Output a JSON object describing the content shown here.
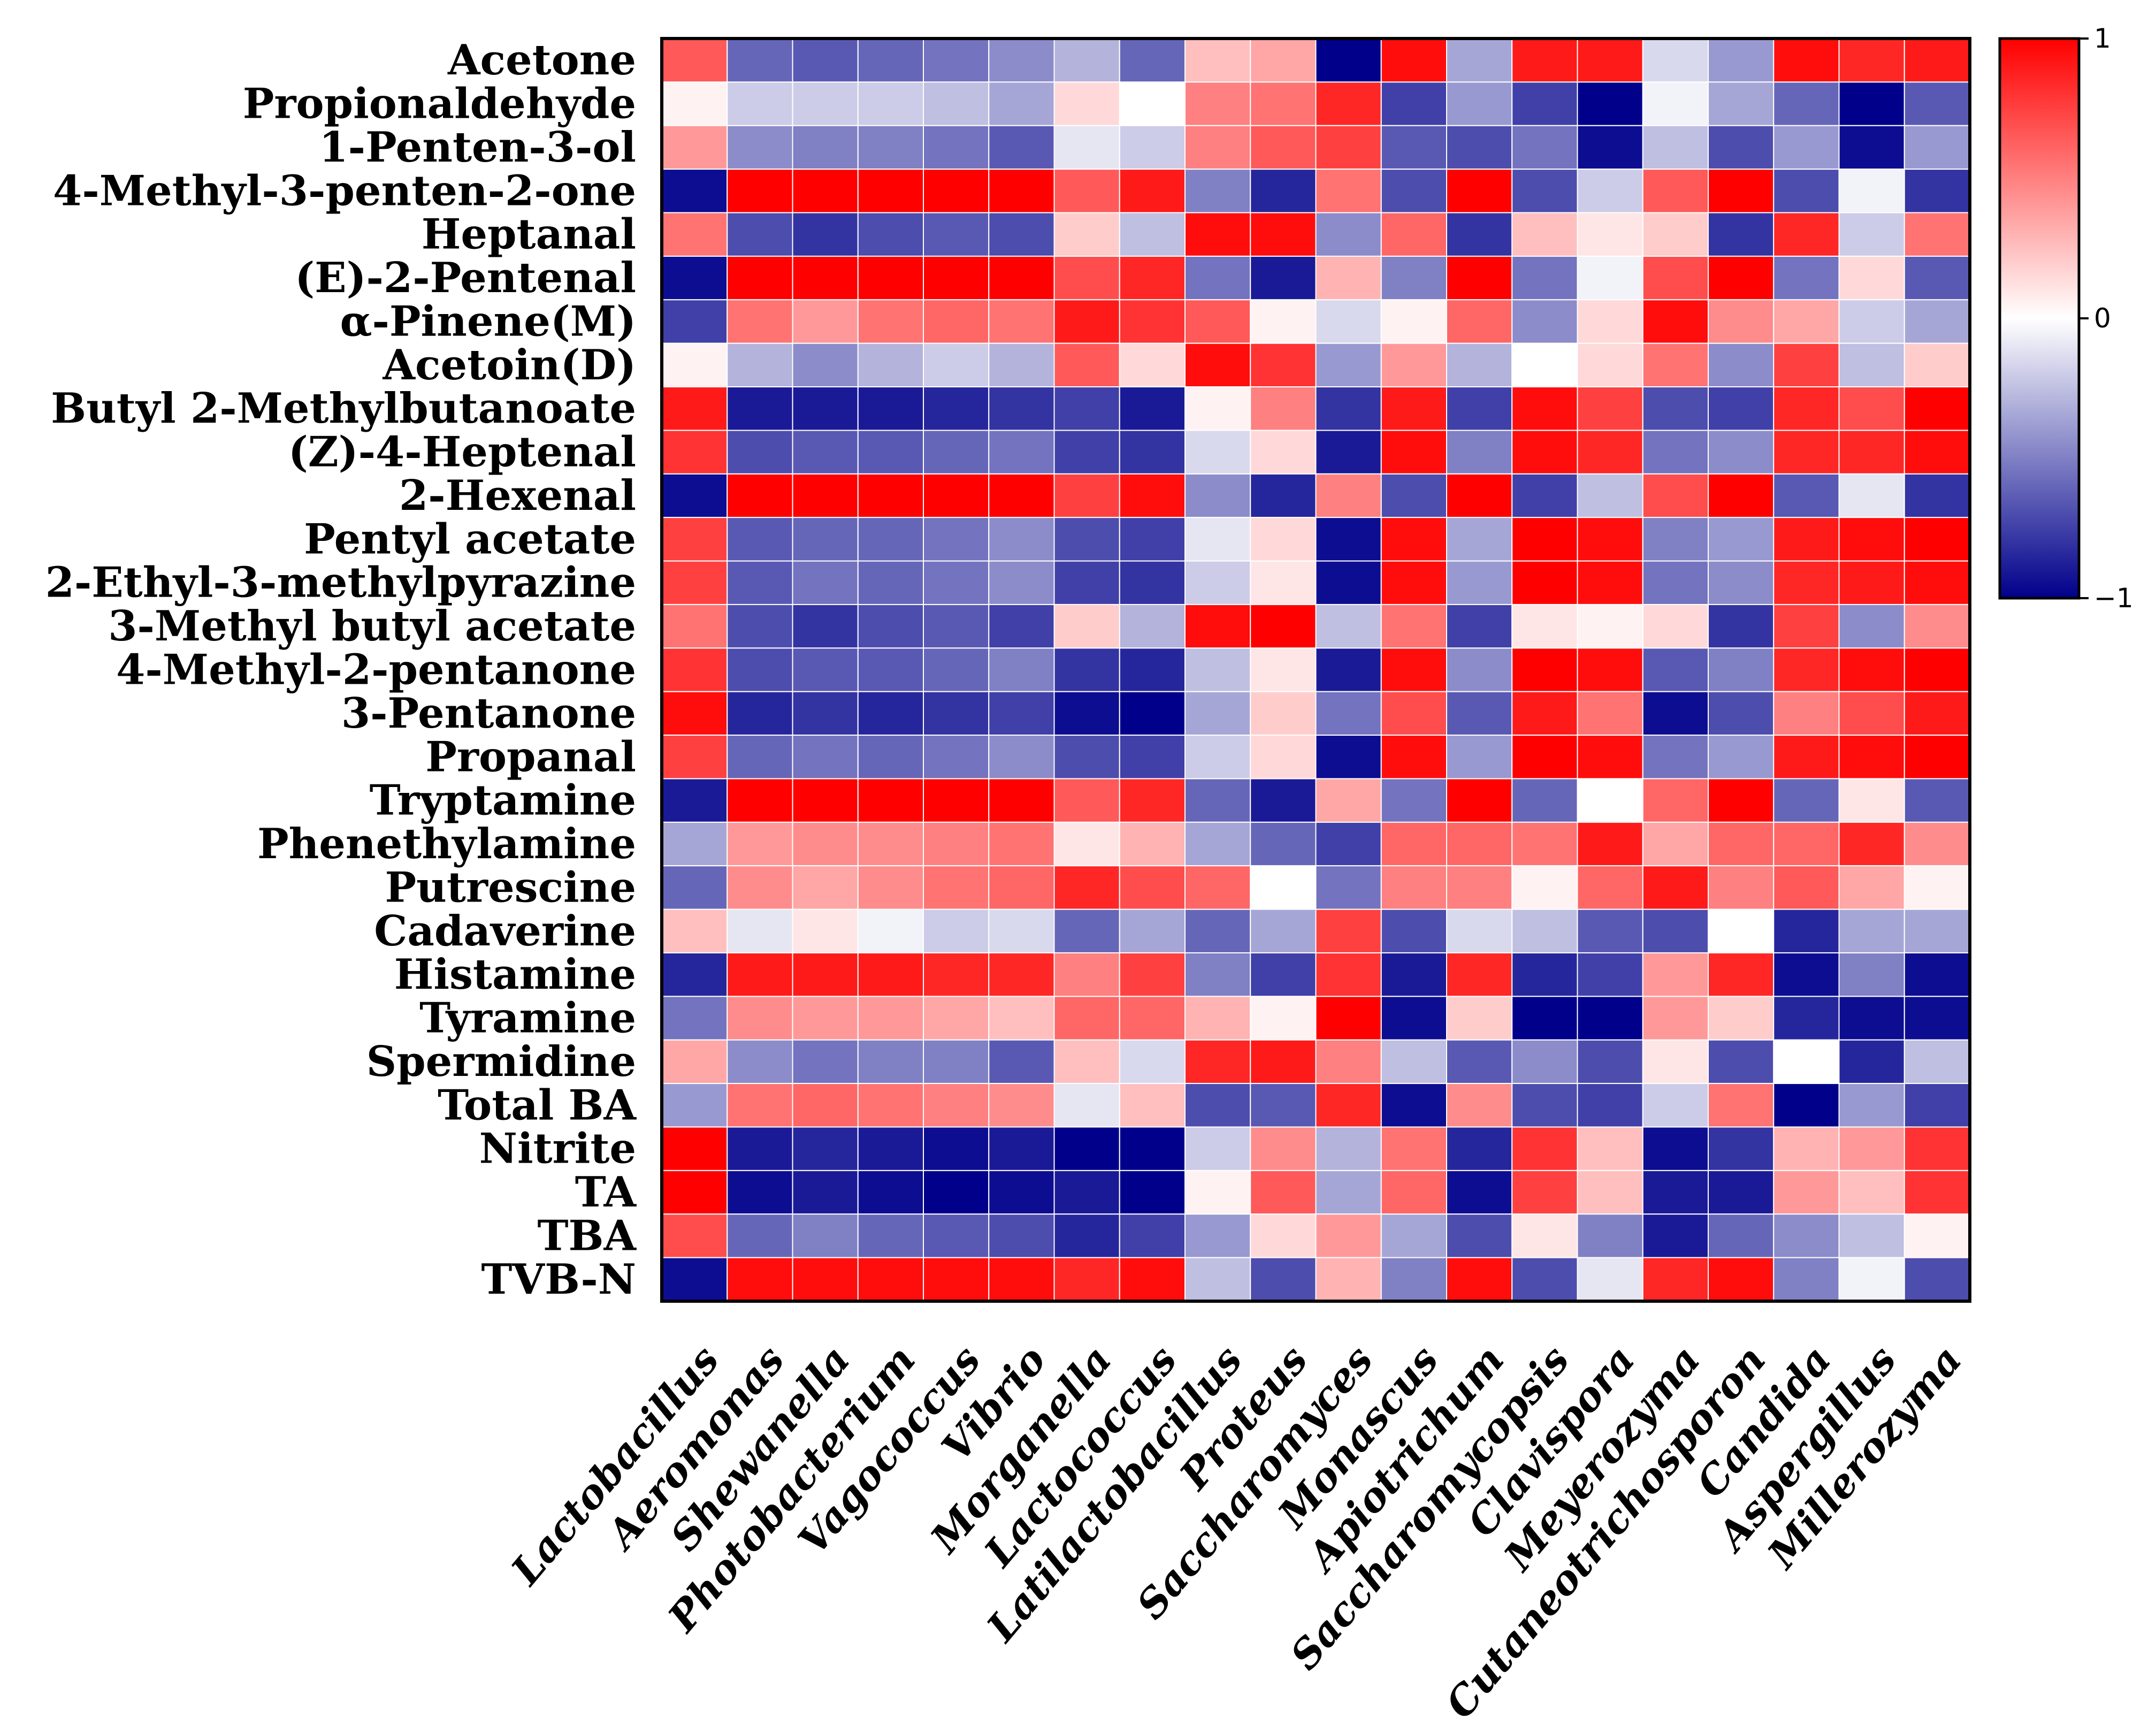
{
  "chart_data": {
    "type": "heatmap",
    "title": "",
    "xlabel": "",
    "ylabel": "",
    "color_scale": {
      "min": -1,
      "max": 1,
      "min_color": "#00008B",
      "mid_color": "#FFFFFF",
      "max_color": "#FF0000",
      "ticks": [
        {
          "value": 1,
          "label": "1"
        },
        {
          "value": 0,
          "label": "0"
        },
        {
          "value": -1,
          "label": "−1"
        }
      ]
    },
    "rows": [
      "Acetone",
      "Propionaldehyde",
      "1-Penten-3-ol",
      "4-Methyl-3-penten-2-one",
      "Heptanal",
      "(E)-2-Pentenal",
      "α-Pinene(M)",
      "Acetoin(D)",
      "Butyl 2-Methylbutanoate",
      "(Z)-4-Heptenal",
      "2-Hexenal",
      "Pentyl acetate",
      "2-Ethyl-3-methylpyrazine",
      "3-Methyl butyl acetate",
      "4-Methyl-2-pentanone",
      "3-Pentanone",
      "Propanal",
      "Tryptamine",
      "Phenethylamine",
      "Putrescine",
      "Cadaverine",
      "Histamine",
      "Tyramine",
      "Spermidine",
      "Total BA",
      "Nitrite",
      "TA",
      "TBA",
      "TVB-N"
    ],
    "columns": [
      "Lactobacillus",
      "Aeromonas",
      "Shewanella",
      "Photobacterium",
      "Vagococcus",
      "Vibrio",
      "Morganella",
      "Lactococcus",
      "Latilactobacillus",
      "Proteus",
      "Saccharomyces",
      "Monascus",
      "Apiotrichum",
      "Saccharomycopsis",
      "Clavispora",
      "Meyerozyma",
      "Cutaneotrichosporon",
      "Candida",
      "Aspergillus",
      "Millerozyma"
    ],
    "values": [
      [
        0.65,
        -0.6,
        -0.65,
        -0.6,
        -0.55,
        -0.45,
        -0.3,
        -0.6,
        0.25,
        0.35,
        -1.0,
        0.95,
        -0.35,
        0.9,
        0.9,
        -0.15,
        -0.4,
        0.95,
        0.85,
        0.9
      ],
      [
        0.05,
        -0.2,
        -0.2,
        -0.2,
        -0.25,
        -0.35,
        0.15,
        0.0,
        0.5,
        0.55,
        0.85,
        -0.75,
        -0.4,
        -0.75,
        -1.0,
        -0.05,
        -0.35,
        -0.6,
        -1.0,
        -0.65
      ],
      [
        0.4,
        -0.45,
        -0.5,
        -0.5,
        -0.55,
        -0.65,
        -0.1,
        -0.2,
        0.5,
        0.65,
        0.75,
        -0.65,
        -0.7,
        -0.55,
        -0.95,
        -0.25,
        -0.7,
        -0.4,
        -0.95,
        -0.4
      ],
      [
        -0.95,
        1.0,
        1.0,
        1.0,
        1.0,
        1.0,
        0.65,
        0.9,
        -0.5,
        -0.85,
        0.55,
        -0.7,
        1.0,
        -0.7,
        -0.2,
        0.65,
        1.0,
        -0.7,
        -0.05,
        -0.8
      ],
      [
        0.55,
        -0.7,
        -0.8,
        -0.7,
        -0.65,
        -0.7,
        0.2,
        -0.25,
        0.95,
        0.95,
        -0.45,
        0.6,
        -0.8,
        0.25,
        0.1,
        0.2,
        -0.8,
        0.85,
        -0.2,
        0.55
      ],
      [
        -0.95,
        1.0,
        1.0,
        1.0,
        1.0,
        1.0,
        0.7,
        0.85,
        -0.55,
        -0.9,
        0.3,
        -0.5,
        1.0,
        -0.55,
        -0.05,
        0.7,
        1.0,
        -0.55,
        0.15,
        -0.65
      ],
      [
        -0.75,
        0.55,
        0.4,
        0.55,
        0.6,
        0.55,
        0.9,
        0.8,
        0.65,
        0.05,
        -0.15,
        0.05,
        0.6,
        -0.45,
        0.15,
        0.95,
        0.45,
        0.35,
        -0.2,
        -0.35
      ],
      [
        0.05,
        -0.3,
        -0.45,
        -0.3,
        -0.2,
        -0.3,
        0.65,
        0.15,
        0.95,
        0.8,
        -0.4,
        0.4,
        -0.3,
        0.0,
        0.15,
        0.55,
        -0.45,
        0.75,
        -0.25,
        0.2
      ],
      [
        0.9,
        -0.9,
        -0.9,
        -0.9,
        -0.85,
        -0.8,
        -0.75,
        -0.9,
        0.05,
        0.5,
        -0.8,
        0.9,
        -0.75,
        0.95,
        0.75,
        -0.7,
        -0.75,
        0.85,
        0.7,
        1.0
      ],
      [
        0.8,
        -0.7,
        -0.65,
        -0.65,
        -0.6,
        -0.55,
        -0.75,
        -0.8,
        -0.15,
        0.15,
        -0.9,
        0.95,
        -0.5,
        0.95,
        0.85,
        -0.55,
        -0.45,
        0.85,
        0.85,
        0.95
      ],
      [
        -0.95,
        1.0,
        1.0,
        1.0,
        1.0,
        1.0,
        0.75,
        0.95,
        -0.45,
        -0.85,
        0.5,
        -0.7,
        1.0,
        -0.75,
        -0.25,
        0.7,
        1.0,
        -0.65,
        -0.1,
        -0.8
      ],
      [
        0.75,
        -0.65,
        -0.6,
        -0.6,
        -0.55,
        -0.45,
        -0.7,
        -0.75,
        -0.1,
        0.15,
        -0.95,
        0.95,
        -0.35,
        1.0,
        0.95,
        -0.5,
        -0.4,
        0.9,
        0.95,
        1.0
      ],
      [
        0.75,
        -0.65,
        -0.55,
        -0.6,
        -0.55,
        -0.45,
        -0.75,
        -0.8,
        -0.2,
        0.1,
        -0.95,
        0.95,
        -0.4,
        1.0,
        0.95,
        -0.55,
        -0.45,
        0.85,
        0.9,
        0.95
      ],
      [
        0.55,
        -0.7,
        -0.8,
        -0.7,
        -0.65,
        -0.75,
        0.2,
        -0.3,
        0.95,
        1.0,
        -0.25,
        0.55,
        -0.75,
        0.1,
        0.05,
        0.15,
        -0.8,
        0.75,
        -0.45,
        0.45
      ],
      [
        0.8,
        -0.7,
        -0.65,
        -0.65,
        -0.6,
        -0.5,
        -0.8,
        -0.85,
        -0.25,
        0.1,
        -0.9,
        0.95,
        -0.45,
        1.0,
        0.95,
        -0.65,
        -0.5,
        0.85,
        0.95,
        1.0
      ],
      [
        0.95,
        -0.85,
        -0.8,
        -0.85,
        -0.8,
        -0.75,
        -0.95,
        -1.0,
        -0.35,
        0.2,
        -0.55,
        0.7,
        -0.65,
        0.9,
        0.55,
        -0.95,
        -0.7,
        0.5,
        0.7,
        0.9
      ],
      [
        0.75,
        -0.6,
        -0.55,
        -0.6,
        -0.55,
        -0.45,
        -0.7,
        -0.75,
        -0.2,
        0.15,
        -0.95,
        0.95,
        -0.4,
        1.0,
        0.95,
        -0.55,
        -0.4,
        0.9,
        0.95,
        1.0
      ],
      [
        -0.9,
        1.0,
        1.0,
        1.0,
        1.0,
        1.0,
        0.65,
        0.85,
        -0.6,
        -0.9,
        0.35,
        -0.55,
        1.0,
        -0.6,
        0.0,
        0.6,
        1.0,
        -0.6,
        0.1,
        -0.65
      ],
      [
        -0.35,
        0.4,
        0.45,
        0.45,
        0.5,
        0.55,
        0.1,
        0.3,
        -0.35,
        -0.6,
        -0.75,
        0.6,
        0.6,
        0.55,
        0.9,
        0.35,
        0.6,
        0.6,
        0.85,
        0.45
      ],
      [
        -0.6,
        0.45,
        0.35,
        0.45,
        0.55,
        0.6,
        0.85,
        0.7,
        0.6,
        0.0,
        -0.55,
        0.5,
        0.5,
        0.05,
        0.6,
        0.9,
        0.5,
        0.65,
        0.35,
        0.05
      ],
      [
        0.25,
        -0.1,
        0.1,
        -0.05,
        -0.2,
        -0.15,
        -0.6,
        -0.35,
        -0.6,
        -0.35,
        0.75,
        -0.7,
        -0.15,
        -0.25,
        -0.65,
        -0.7,
        0.0,
        -0.85,
        -0.35,
        -0.35
      ],
      [
        -0.85,
        0.9,
        0.9,
        0.9,
        0.85,
        0.85,
        0.5,
        0.75,
        -0.5,
        -0.75,
        0.8,
        -0.9,
        0.85,
        -0.85,
        -0.75,
        0.4,
        0.85,
        -0.95,
        -0.5,
        -0.95
      ],
      [
        -0.55,
        0.45,
        0.4,
        0.4,
        0.35,
        0.25,
        0.6,
        0.6,
        0.3,
        0.05,
        1.0,
        -0.95,
        0.2,
        -1.0,
        -1.0,
        0.4,
        0.2,
        -0.85,
        -0.95,
        -0.95
      ],
      [
        0.35,
        -0.45,
        -0.55,
        -0.5,
        -0.5,
        -0.65,
        0.25,
        -0.15,
        0.85,
        0.9,
        0.5,
        -0.25,
        -0.65,
        -0.45,
        -0.7,
        0.1,
        -0.7,
        0.0,
        -0.85,
        -0.25
      ],
      [
        -0.4,
        0.55,
        0.6,
        0.55,
        0.5,
        0.45,
        -0.1,
        0.25,
        -0.7,
        -0.65,
        0.85,
        -0.95,
        0.45,
        -0.7,
        -0.75,
        -0.2,
        0.55,
        -1.0,
        -0.4,
        -0.75
      ],
      [
        1.0,
        -0.9,
        -0.85,
        -0.9,
        -0.95,
        -0.9,
        -1.0,
        -1.0,
        -0.2,
        0.45,
        -0.3,
        0.55,
        -0.85,
        0.8,
        0.25,
        -0.95,
        -0.8,
        0.3,
        0.4,
        0.8
      ],
      [
        1.0,
        -0.95,
        -0.9,
        -0.95,
        -1.0,
        -0.95,
        -0.9,
        -1.0,
        0.05,
        0.65,
        -0.35,
        0.6,
        -0.95,
        0.75,
        0.25,
        -0.9,
        -0.9,
        0.4,
        0.25,
        0.8
      ],
      [
        0.7,
        -0.6,
        -0.5,
        -0.6,
        -0.65,
        -0.7,
        -0.85,
        -0.75,
        -0.4,
        0.15,
        0.4,
        -0.35,
        -0.7,
        0.1,
        -0.5,
        -0.9,
        -0.6,
        -0.45,
        -0.25,
        0.05
      ],
      [
        -0.95,
        0.95,
        0.95,
        0.95,
        0.95,
        0.95,
        0.85,
        0.95,
        -0.25,
        -0.7,
        0.3,
        -0.5,
        0.95,
        -0.7,
        -0.1,
        0.85,
        0.95,
        -0.5,
        -0.05,
        -0.7
      ]
    ]
  }
}
